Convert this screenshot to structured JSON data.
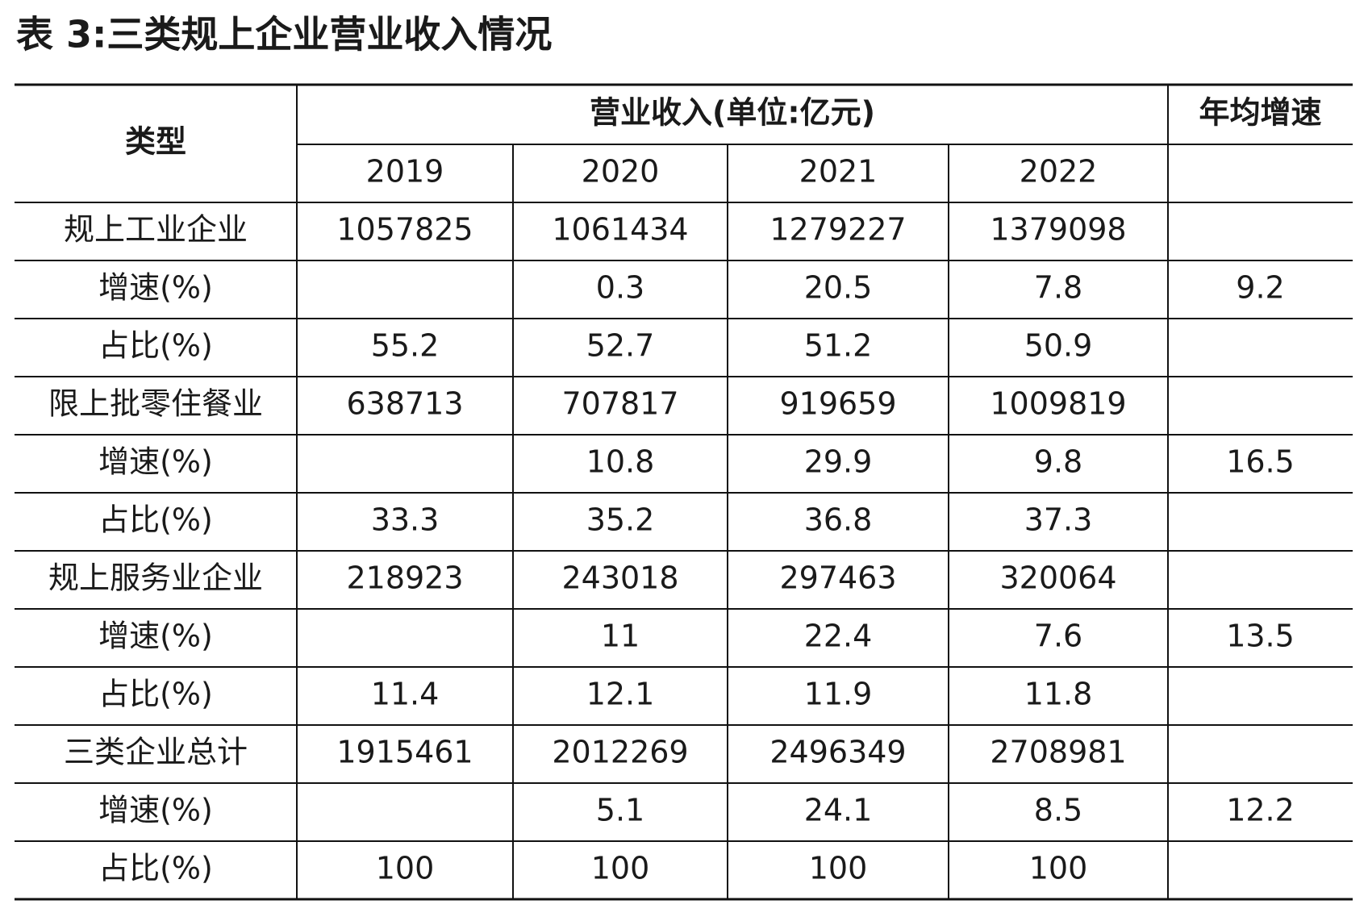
{
  "title": "表 3:三类规上企业营业收入情况",
  "header": {
    "type_label": "类型",
    "revenue_label": "营业收入(单位:亿元)",
    "growth_label": "年均增速",
    "years": [
      "2019",
      "2020",
      "2021",
      "2022"
    ]
  },
  "table": {
    "rows": [
      [
        "规上工业企业",
        1057825,
        1061434,
        1279227,
        1379098,
        null
      ],
      [
        "增速(%)",
        null,
        0.3,
        20.5,
        7.8,
        9.2
      ],
      [
        "占比(%)",
        55.2,
        52.7,
        51.2,
        50.9,
        null
      ],
      [
        "限上批零住餐业",
        638713,
        707817,
        919659,
        1009819,
        null
      ],
      [
        "增速(%)",
        null,
        10.8,
        29.9,
        9.8,
        16.5
      ],
      [
        "占比(%)",
        33.3,
        35.2,
        36.8,
        37.3,
        null
      ],
      [
        "规上服务业企业",
        218923,
        243018,
        297463,
        320064,
        null
      ],
      [
        "增速(%)",
        null,
        11,
        22.4,
        7.6,
        13.5
      ],
      [
        "占比(%)",
        11.4,
        12.1,
        11.9,
        11.8,
        null
      ],
      [
        "三类企业总计",
        1915461,
        2012269,
        2496349,
        2708981,
        null
      ],
      [
        "增速(%)",
        null,
        5.1,
        24.1,
        8.5,
        12.2
      ],
      [
        "占比(%)",
        100,
        100,
        100,
        100,
        null
      ]
    ]
  }
}
